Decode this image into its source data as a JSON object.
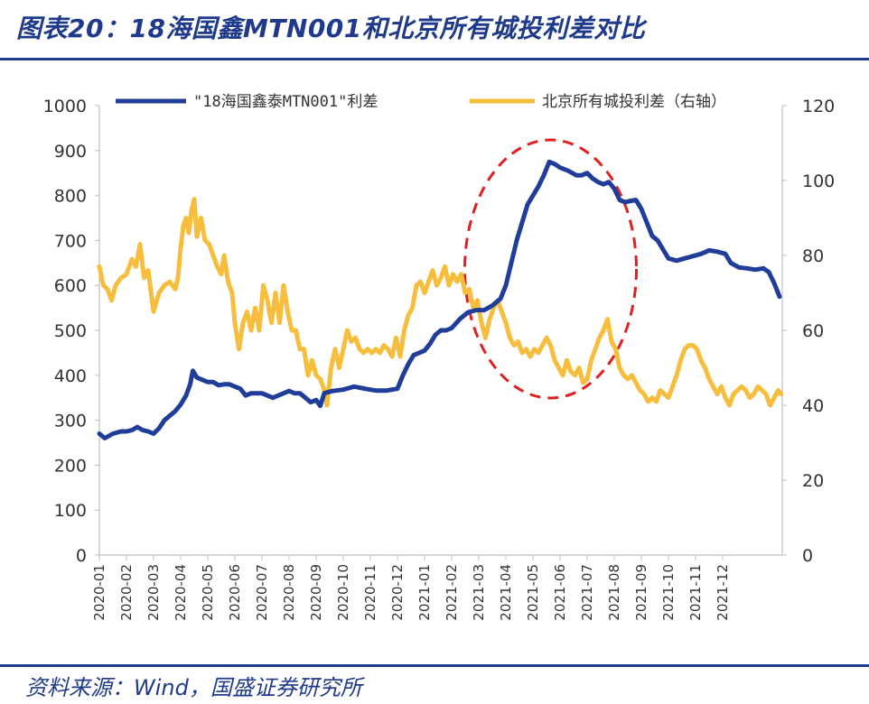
{
  "title": "图表20：18海国鑫MTN001和北京所有城投利差对比",
  "source": "资料来源：Wind，国盛证券研究所",
  "colors": {
    "series1": "#1f3d99",
    "series2": "#f6be3c",
    "accent": "#1f3a8a",
    "highlight": "#e02020"
  },
  "chart_data": {
    "type": "line",
    "categories": [
      "2020-01",
      "2020-02",
      "2020-03",
      "2020-04",
      "2020-05",
      "2020-06",
      "2020-07",
      "2020-08",
      "2020-09",
      "2020-10",
      "2020-11",
      "2020-12",
      "2021-01",
      "2021-02",
      "2021-03",
      "2021-04",
      "2021-05",
      "2021-06",
      "2021-07",
      "2021-08",
      "2021-09",
      "2021-10",
      "2021-11",
      "2021-12"
    ],
    "y_left": {
      "ticks": [
        0,
        100,
        200,
        300,
        400,
        500,
        600,
        700,
        800,
        900,
        1000
      ],
      "ylim": [
        0,
        1000
      ]
    },
    "y_right": {
      "ticks": [
        0,
        20,
        40,
        60,
        80,
        100,
        120
      ],
      "ylim": [
        0,
        120
      ]
    },
    "legend_position": "top",
    "grid": false,
    "annotation": "dashed red ellipse around 2021-03 to 2021-08",
    "series": [
      {
        "name": "\"18海国鑫泰MTN001\"利差",
        "axis": "left",
        "color": "#1f3d99",
        "points": [
          [
            0.0,
            270
          ],
          [
            0.2,
            260
          ],
          [
            0.5,
            270
          ],
          [
            0.8,
            275
          ],
          [
            1.0,
            275
          ],
          [
            1.2,
            278
          ],
          [
            1.4,
            285
          ],
          [
            1.6,
            278
          ],
          [
            1.8,
            275
          ],
          [
            2.0,
            270
          ],
          [
            2.2,
            282
          ],
          [
            2.4,
            300
          ],
          [
            2.6,
            310
          ],
          [
            2.8,
            320
          ],
          [
            3.0,
            335
          ],
          [
            3.2,
            355
          ],
          [
            3.35,
            380
          ],
          [
            3.45,
            410
          ],
          [
            3.6,
            395
          ],
          [
            3.8,
            390
          ],
          [
            4.0,
            385
          ],
          [
            4.2,
            385
          ],
          [
            4.4,
            378
          ],
          [
            4.6,
            380
          ],
          [
            4.8,
            380
          ],
          [
            5.0,
            375
          ],
          [
            5.2,
            370
          ],
          [
            5.4,
            355
          ],
          [
            5.6,
            360
          ],
          [
            5.8,
            360
          ],
          [
            6.0,
            360
          ],
          [
            6.2,
            355
          ],
          [
            6.4,
            350
          ],
          [
            6.6,
            355
          ],
          [
            6.8,
            360
          ],
          [
            7.0,
            365
          ],
          [
            7.2,
            360
          ],
          [
            7.4,
            360
          ],
          [
            7.6,
            350
          ],
          [
            7.8,
            340
          ],
          [
            8.0,
            345
          ],
          [
            8.15,
            332
          ],
          [
            8.3,
            360
          ],
          [
            8.6,
            365
          ],
          [
            9.0,
            368
          ],
          [
            9.4,
            375
          ],
          [
            9.8,
            370
          ],
          [
            10.2,
            366
          ],
          [
            10.6,
            366
          ],
          [
            11.0,
            370
          ],
          [
            11.2,
            400
          ],
          [
            11.4,
            425
          ],
          [
            11.6,
            445
          ],
          [
            11.8,
            450
          ],
          [
            12.0,
            455
          ],
          [
            12.2,
            470
          ],
          [
            12.4,
            490
          ],
          [
            12.6,
            500
          ],
          [
            12.8,
            500
          ],
          [
            13.0,
            505
          ],
          [
            13.3,
            525
          ],
          [
            13.6,
            540
          ],
          [
            13.9,
            545
          ],
          [
            14.2,
            545
          ],
          [
            14.5,
            555
          ],
          [
            14.8,
            570
          ],
          [
            15.0,
            600
          ],
          [
            15.2,
            650
          ],
          [
            15.4,
            700
          ],
          [
            15.6,
            740
          ],
          [
            15.8,
            780
          ],
          [
            16.0,
            800
          ],
          [
            16.2,
            820
          ],
          [
            16.4,
            845
          ],
          [
            16.6,
            875
          ],
          [
            16.8,
            870
          ],
          [
            17.0,
            862
          ],
          [
            17.3,
            855
          ],
          [
            17.6,
            845
          ],
          [
            17.8,
            845
          ],
          [
            18.0,
            850
          ],
          [
            18.2,
            838
          ],
          [
            18.4,
            830
          ],
          [
            18.6,
            825
          ],
          [
            18.8,
            830
          ],
          [
            19.0,
            815
          ],
          [
            19.2,
            790
          ],
          [
            19.4,
            785
          ],
          [
            19.6,
            788
          ],
          [
            19.8,
            790
          ],
          [
            20.0,
            770
          ],
          [
            20.2,
            740
          ],
          [
            20.4,
            710
          ],
          [
            20.6,
            700
          ],
          [
            20.8,
            680
          ],
          [
            21.0,
            660
          ],
          [
            21.3,
            655
          ],
          [
            21.6,
            660
          ],
          [
            21.9,
            665
          ],
          [
            22.2,
            670
          ],
          [
            22.5,
            678
          ],
          [
            22.8,
            675
          ],
          [
            23.1,
            670
          ],
          [
            23.3,
            650
          ],
          [
            23.6,
            640
          ],
          [
            23.9,
            638
          ],
          [
            24.2,
            635
          ],
          [
            24.5,
            638
          ],
          [
            24.7,
            630
          ],
          [
            24.9,
            605
          ],
          [
            25.1,
            575
          ]
        ]
      },
      {
        "name": "北京所有城投利差（右轴）",
        "axis": "right",
        "color": "#f6be3c",
        "points": [
          [
            0.0,
            77
          ],
          [
            0.15,
            72
          ],
          [
            0.3,
            71
          ],
          [
            0.45,
            68
          ],
          [
            0.6,
            72
          ],
          [
            0.8,
            74
          ],
          [
            1.0,
            75
          ],
          [
            1.2,
            79
          ],
          [
            1.35,
            77
          ],
          [
            1.5,
            83
          ],
          [
            1.65,
            74
          ],
          [
            1.8,
            76
          ],
          [
            2.0,
            65
          ],
          [
            2.2,
            70
          ],
          [
            2.4,
            72
          ],
          [
            2.6,
            73
          ],
          [
            2.8,
            71
          ],
          [
            2.9,
            74
          ],
          [
            3.0,
            82
          ],
          [
            3.1,
            88
          ],
          [
            3.2,
            90
          ],
          [
            3.3,
            86
          ],
          [
            3.4,
            92
          ],
          [
            3.5,
            95
          ],
          [
            3.6,
            85
          ],
          [
            3.75,
            90
          ],
          [
            3.9,
            84
          ],
          [
            4.05,
            83
          ],
          [
            4.2,
            80
          ],
          [
            4.35,
            77
          ],
          [
            4.5,
            75
          ],
          [
            4.6,
            80
          ],
          [
            4.75,
            73
          ],
          [
            4.9,
            70
          ],
          [
            5.0,
            62
          ],
          [
            5.15,
            55
          ],
          [
            5.3,
            62
          ],
          [
            5.45,
            65
          ],
          [
            5.6,
            60
          ],
          [
            5.75,
            66
          ],
          [
            5.9,
            60
          ],
          [
            6.05,
            72
          ],
          [
            6.2,
            68
          ],
          [
            6.35,
            62
          ],
          [
            6.5,
            70
          ],
          [
            6.65,
            62
          ],
          [
            6.8,
            72
          ],
          [
            6.95,
            65
          ],
          [
            7.1,
            60
          ],
          [
            7.25,
            60
          ],
          [
            7.4,
            55
          ],
          [
            7.55,
            55
          ],
          [
            7.7,
            48
          ],
          [
            7.85,
            52
          ],
          [
            8.0,
            48
          ],
          [
            8.15,
            47
          ],
          [
            8.3,
            44
          ],
          [
            8.4,
            40
          ],
          [
            8.55,
            50
          ],
          [
            8.7,
            55
          ],
          [
            8.85,
            50
          ],
          [
            9.0,
            55
          ],
          [
            9.15,
            60
          ],
          [
            9.3,
            57
          ],
          [
            9.45,
            58
          ],
          [
            9.6,
            55
          ],
          [
            9.75,
            54
          ],
          [
            9.9,
            55
          ],
          [
            10.05,
            54
          ],
          [
            10.2,
            55
          ],
          [
            10.35,
            54
          ],
          [
            10.5,
            56
          ],
          [
            10.65,
            55
          ],
          [
            10.8,
            53
          ],
          [
            10.95,
            58
          ],
          [
            11.1,
            53
          ],
          [
            11.25,
            60
          ],
          [
            11.4,
            64
          ],
          [
            11.55,
            66
          ],
          [
            11.7,
            72
          ],
          [
            11.85,
            73
          ],
          [
            12.0,
            70
          ],
          [
            12.15,
            73
          ],
          [
            12.3,
            76
          ],
          [
            12.45,
            72
          ],
          [
            12.6,
            74
          ],
          [
            12.75,
            77
          ],
          [
            12.9,
            72
          ],
          [
            13.05,
            75
          ],
          [
            13.2,
            73
          ],
          [
            13.35,
            75
          ],
          [
            13.5,
            70
          ],
          [
            13.65,
            71
          ],
          [
            13.8,
            66
          ],
          [
            13.95,
            68
          ],
          [
            14.1,
            62
          ],
          [
            14.25,
            58
          ],
          [
            14.4,
            63
          ],
          [
            14.55,
            66
          ],
          [
            14.7,
            68
          ],
          [
            14.85,
            65
          ],
          [
            15.0,
            62
          ],
          [
            15.15,
            58
          ],
          [
            15.3,
            56
          ],
          [
            15.45,
            57
          ],
          [
            15.6,
            54
          ],
          [
            15.75,
            55
          ],
          [
            15.9,
            53
          ],
          [
            16.05,
            55
          ],
          [
            16.2,
            54
          ],
          [
            16.35,
            56
          ],
          [
            16.5,
            58
          ],
          [
            16.65,
            56
          ],
          [
            16.8,
            52
          ],
          [
            16.95,
            50
          ],
          [
            17.1,
            48
          ],
          [
            17.25,
            52
          ],
          [
            17.4,
            49
          ],
          [
            17.55,
            48
          ],
          [
            17.7,
            50
          ],
          [
            17.85,
            46
          ],
          [
            18.0,
            47
          ],
          [
            18.15,
            52
          ],
          [
            18.3,
            55
          ],
          [
            18.45,
            58
          ],
          [
            18.6,
            60
          ],
          [
            18.75,
            63
          ],
          [
            18.9,
            57
          ],
          [
            19.05,
            55
          ],
          [
            19.2,
            50
          ],
          [
            19.35,
            48
          ],
          [
            19.5,
            47
          ],
          [
            19.65,
            48
          ],
          [
            19.8,
            46
          ],
          [
            19.95,
            44
          ],
          [
            20.1,
            43
          ],
          [
            20.25,
            41
          ],
          [
            20.4,
            42
          ],
          [
            20.55,
            41
          ],
          [
            20.7,
            44
          ],
          [
            20.85,
            43
          ],
          [
            21.0,
            42
          ],
          [
            21.15,
            45
          ],
          [
            21.3,
            48
          ],
          [
            21.45,
            52
          ],
          [
            21.6,
            55
          ],
          [
            21.75,
            56
          ],
          [
            21.9,
            56
          ],
          [
            22.05,
            55
          ],
          [
            22.2,
            52
          ],
          [
            22.35,
            50
          ],
          [
            22.5,
            47
          ],
          [
            22.65,
            45
          ],
          [
            22.8,
            43
          ],
          [
            22.95,
            45
          ],
          [
            23.1,
            42
          ],
          [
            23.25,
            40
          ],
          [
            23.4,
            43
          ],
          [
            23.55,
            44
          ],
          [
            23.7,
            45
          ],
          [
            23.85,
            44
          ],
          [
            24.0,
            42
          ],
          [
            24.15,
            43
          ],
          [
            24.3,
            45
          ],
          [
            24.45,
            44
          ],
          [
            24.6,
            43
          ],
          [
            24.75,
            40
          ],
          [
            24.9,
            42
          ],
          [
            25.05,
            44
          ],
          [
            25.15,
            43
          ]
        ]
      }
    ]
  }
}
